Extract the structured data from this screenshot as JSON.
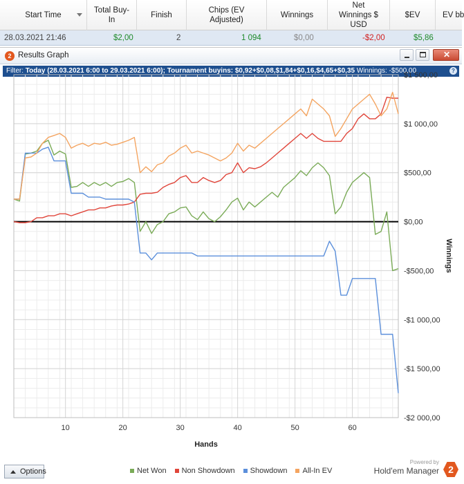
{
  "table": {
    "columns": [
      {
        "label": "Start Time",
        "sort": true
      },
      {
        "label": "Total Buy-In"
      },
      {
        "label": "Finish"
      },
      {
        "label": "Chips (EV Adjusted)"
      },
      {
        "label": "Winnings"
      },
      {
        "label": "Net Winnings $ USD"
      },
      {
        "label": "$EV"
      },
      {
        "label": "EV bb"
      }
    ],
    "row": {
      "start_time": "28.03.2021 21:46",
      "buy_in": "$2,00",
      "finish": "2",
      "chips": "1 094",
      "winnings": "$0,00",
      "net_winnings": "-$2,00",
      "ev": "$5,86"
    }
  },
  "window": {
    "title": "Results Graph",
    "filter_prefix": "Filter:",
    "filter_text": "Today (28.03.2021 6:00 to 29.03.2021 6:00); Tournament buyins: $0,92+$0,08,$1,84+$0,16,$4,65+$0,35",
    "winnings_text": "Winnings: -$500,00",
    "help_label": "?",
    "badge": "2"
  },
  "footer": {
    "options_label": "Options",
    "powered_by": "Powered by",
    "brand_name": "Hold'em Manager",
    "brand_badge": "2"
  },
  "colors": {
    "net_won": "#7aab57",
    "non_showdown": "#e0453a",
    "showdown": "#5b8fdb",
    "all_in_ev": "#f4a460",
    "accent": "#1e4f8f"
  },
  "chart_data": {
    "type": "line",
    "xlabel": "Hands",
    "ylabel": "Winnings",
    "xlim": [
      1,
      68
    ],
    "ylim": [
      -2000,
      1500
    ],
    "x_ticks": [
      10,
      20,
      30,
      40,
      50,
      60
    ],
    "y_ticks": [
      {
        "value": 1500,
        "label": "$1 500,00"
      },
      {
        "value": 1000,
        "label": "$1 000,00"
      },
      {
        "value": 500,
        "label": "$500,00"
      },
      {
        "value": 0,
        "label": "$0,00"
      },
      {
        "value": -500,
        "label": "-$500,00"
      },
      {
        "value": -1000,
        "label": "-$1 000,00"
      },
      {
        "value": -1500,
        "label": "-$1 500,00"
      },
      {
        "value": -2000,
        "label": "-$2 000,00"
      }
    ],
    "grid": true,
    "legend_position": "bottom",
    "series": [
      {
        "name": "Net Won",
        "color": "#7aab57",
        "values": [
          230,
          210,
          690,
          700,
          720,
          800,
          830,
          680,
          720,
          690,
          350,
          360,
          400,
          360,
          400,
          370,
          400,
          360,
          400,
          410,
          440,
          400,
          -100,
          0,
          -120,
          -30,
          0,
          80,
          100,
          140,
          150,
          60,
          20,
          100,
          30,
          0,
          50,
          120,
          200,
          240,
          120,
          200,
          150,
          200,
          250,
          300,
          250,
          350,
          400,
          450,
          520,
          470,
          550,
          600,
          550,
          470,
          80,
          150,
          300,
          400,
          450,
          500,
          450,
          -130,
          -100,
          100,
          -500,
          -480
        ]
      },
      {
        "name": "Non Showdown",
        "color": "#e0453a",
        "values": [
          0,
          -10,
          -10,
          0,
          40,
          40,
          60,
          60,
          80,
          80,
          60,
          80,
          100,
          120,
          120,
          140,
          140,
          160,
          170,
          170,
          180,
          200,
          280,
          290,
          290,
          300,
          350,
          380,
          400,
          450,
          470,
          400,
          400,
          450,
          420,
          400,
          420,
          480,
          500,
          600,
          500,
          550,
          540,
          560,
          600,
          650,
          700,
          750,
          800,
          850,
          900,
          850,
          900,
          850,
          820,
          820,
          820,
          820,
          900,
          950,
          1050,
          1100,
          1050,
          1050,
          1100,
          1270,
          1260,
          1260
        ]
      },
      {
        "name": "Showdown",
        "color": "#5b8fdb",
        "values": [
          230,
          230,
          700,
          700,
          700,
          740,
          760,
          620,
          620,
          620,
          290,
          290,
          290,
          250,
          250,
          250,
          230,
          230,
          230,
          230,
          230,
          200,
          -320,
          -320,
          -390,
          -320,
          -320,
          -320,
          -320,
          -320,
          -320,
          -320,
          -350,
          -350,
          -350,
          -350,
          -350,
          -350,
          -350,
          -350,
          -350,
          -350,
          -350,
          -350,
          -350,
          -350,
          -350,
          -350,
          -350,
          -350,
          -350,
          -350,
          -350,
          -350,
          -350,
          -200,
          -300,
          -750,
          -750,
          -580,
          -580,
          -580,
          -580,
          -580,
          -1150,
          -1150,
          -1150,
          -1750
        ]
      },
      {
        "name": "All-In EV",
        "color": "#f4a460",
        "values": [
          230,
          230,
          650,
          660,
          700,
          800,
          860,
          880,
          900,
          860,
          750,
          780,
          800,
          770,
          800,
          790,
          810,
          780,
          790,
          810,
          830,
          860,
          500,
          560,
          510,
          580,
          600,
          670,
          700,
          750,
          780,
          700,
          720,
          700,
          680,
          650,
          620,
          650,
          700,
          800,
          720,
          780,
          750,
          800,
          850,
          900,
          950,
          1000,
          1050,
          1100,
          1150,
          1080,
          1250,
          1200,
          1150,
          1080,
          870,
          950,
          1050,
          1150,
          1200,
          1250,
          1300,
          1200,
          1080,
          1150,
          1320,
          1100
        ]
      }
    ]
  }
}
